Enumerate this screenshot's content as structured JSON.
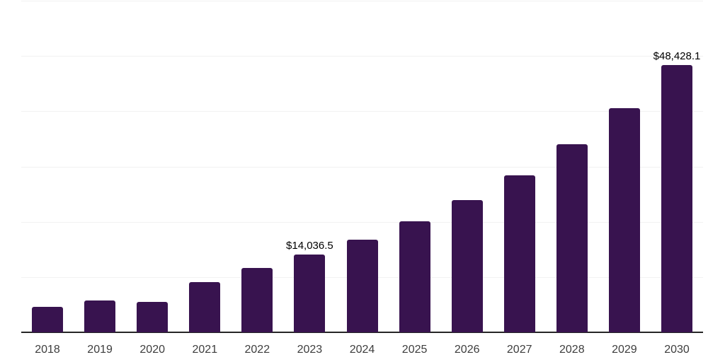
{
  "chart_data": {
    "type": "bar",
    "title": "",
    "xlabel": "",
    "ylabel": "",
    "categories": [
      "2018",
      "2019",
      "2020",
      "2021",
      "2022",
      "2023",
      "2024",
      "2025",
      "2026",
      "2027",
      "2028",
      "2029",
      "2030"
    ],
    "values": [
      4600,
      5800,
      5450,
      9150,
      11600,
      14036.5,
      16750,
      20050,
      23900,
      28450,
      34000,
      40600,
      48428.1
    ],
    "ylim": [
      0,
      60000
    ],
    "gridline_step": 10000,
    "grid": "horizontal",
    "legend": "none",
    "data_labels": {
      "2023": "$14,036.5",
      "2030": "$48,428.1"
    },
    "colors": {
      "bar": "#38134F",
      "gridline": "#f2f2f2",
      "axis_line": "#262626",
      "tick_label": "#3d3d3d",
      "data_label": "#000000",
      "background": "#ffffff"
    }
  }
}
